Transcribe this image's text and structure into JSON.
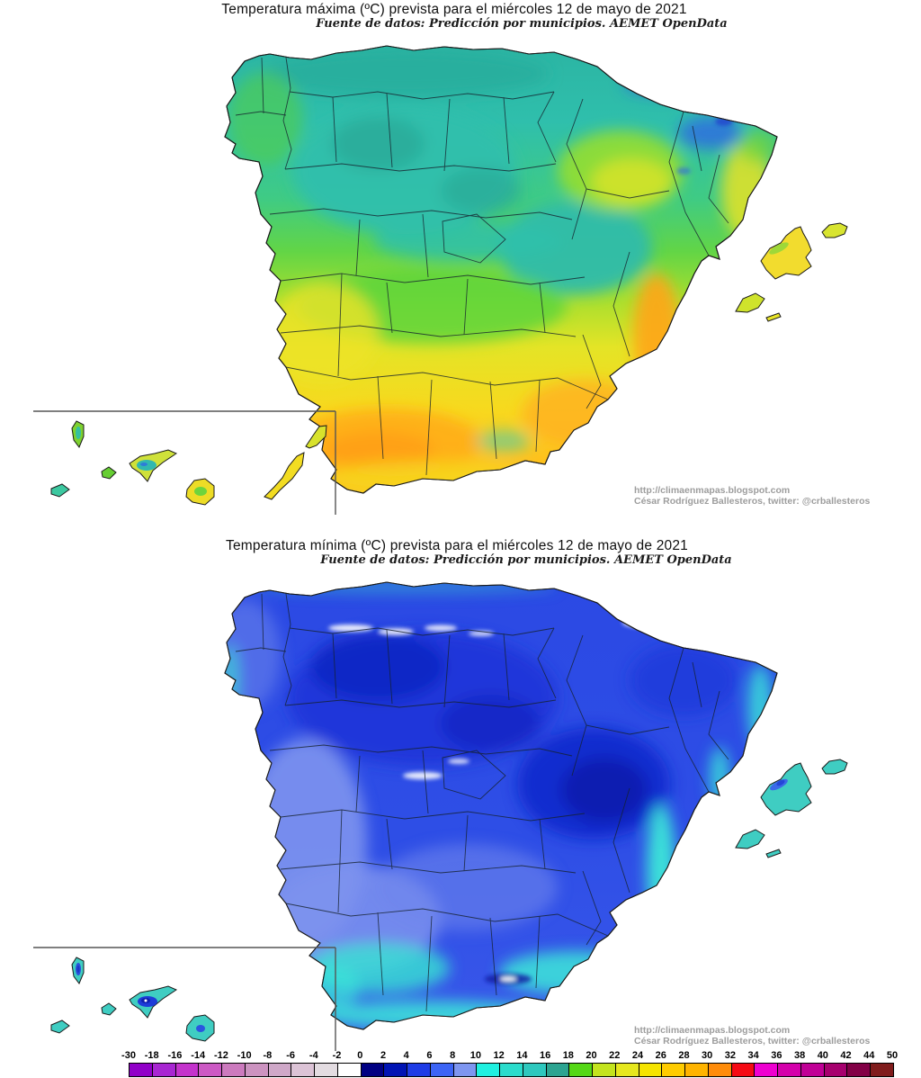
{
  "maps": {
    "max": {
      "title": "Temperatura máxima (ºC) prevista para el miércoles 12 de mayo de 2021",
      "subtitle": "Fuente de datos: Predicción por municipios. AEMET OpenData",
      "credit_url": "http://climaenmapas.blogspot.com",
      "credit_author": "César Rodríguez Ballesteros, twitter: @crballesteros"
    },
    "min": {
      "title": "Temperatura mínima (ºC) prevista para el miércoles 12 de mayo de 2021",
      "subtitle": "Fuente de datos: Predicción por municipios. AEMET OpenData",
      "credit_url": "http://climaenmapas.blogspot.com",
      "credit_author": "César Rodríguez Ballesteros, twitter: @crballesteros"
    }
  },
  "legend": {
    "unit": "ºC",
    "boundaries": [
      "-30",
      "-18",
      "-16",
      "-14",
      "-12",
      "-10",
      "-8",
      "-6",
      "-4",
      "-2",
      "0",
      "2",
      "4",
      "6",
      "8",
      "10",
      "12",
      "14",
      "16",
      "18",
      "20",
      "22",
      "24",
      "26",
      "28",
      "30",
      "32",
      "34",
      "36",
      "38",
      "40",
      "42",
      "44",
      "50"
    ],
    "colors": [
      "#9100C8",
      "#A826D2",
      "#C433CC",
      "#CC59C4",
      "#CC7ABE",
      "#CC93C0",
      "#CFA8C8",
      "#DCC3D6",
      "#E3DCE1",
      "#FFFFFF",
      "#000082",
      "#0014B4",
      "#1E3CE6",
      "#3C64F5",
      "#7E96F0",
      "#20F0E0",
      "#2BDCCC",
      "#2EC8BE",
      "#2CA491",
      "#55D816",
      "#C3E41E",
      "#E6E81E",
      "#F5E400",
      "#FFCC00",
      "#FFB400",
      "#FF8C0A",
      "#F50A14",
      "#EE00D0",
      "#D400AB",
      "#C00096",
      "#A6006E",
      "#820046",
      "#801C1C"
    ]
  }
}
